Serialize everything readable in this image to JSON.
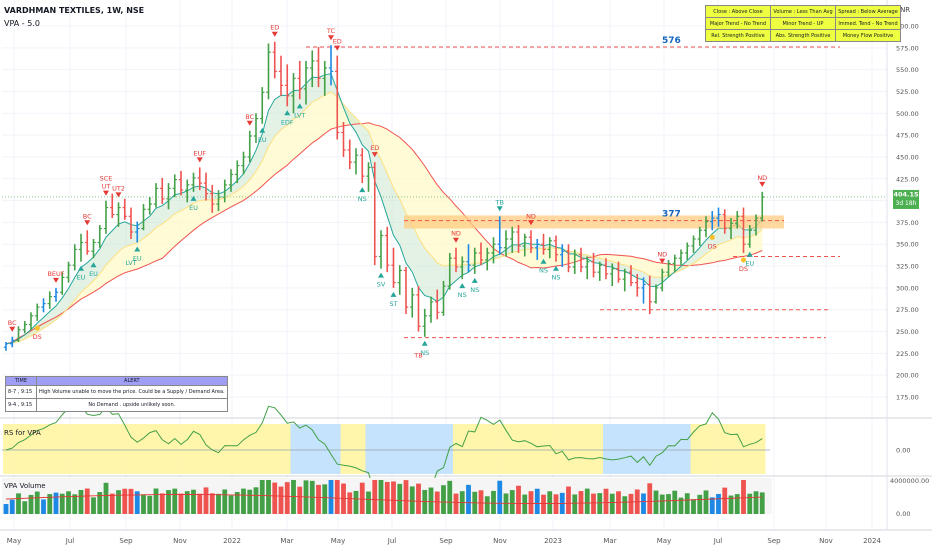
{
  "header": {
    "symbol": "VARDHMAN TEXTILES, 1W, NSE",
    "indicator": "VPA - 5.0"
  },
  "currency": "INR",
  "info_table": [
    [
      "Close : Above Close",
      "Volume : Less Than Avg",
      "Spread : Below Average"
    ],
    [
      "Major Trend - No Trend",
      "Minor Trend - UP",
      "Immed. Tend - No Trend"
    ],
    [
      "Rel. Strength Positive",
      "Abs. Strength Positive",
      "Money Flow Positive"
    ]
  ],
  "alert_table": {
    "headers": [
      "TIME",
      "ALERT"
    ],
    "rows": [
      [
        "8-7 , 9:15",
        "High Volume unable to move the price. Could be a Supply / Demand Area."
      ],
      [
        "9-4 , 9:15",
        "No Demand . upside unlikely soon."
      ]
    ]
  },
  "panes": {
    "rs_title": "RS for VPA",
    "vol_title": "VPA Volume"
  },
  "colors": {
    "up": "#43a047",
    "down": "#ef5350",
    "neutral": "#1e88e5",
    "signal_red": "#e53935",
    "signal_green": "#26a69a",
    "signal_yellow": "#fbc02d",
    "zone": "#ffcc80",
    "rs_bg_yellow": "#fff59d",
    "rs_bg_blue": "#bbdefb",
    "price_tag": "#4caf50"
  },
  "chart_data": {
    "type": "bar",
    "price_axis": {
      "min": 175,
      "max": 600,
      "ticks": [
        175,
        200,
        225,
        250,
        275,
        300,
        325,
        350,
        375,
        400,
        425,
        450,
        475,
        500,
        525,
        550,
        575,
        600
      ]
    },
    "time_labels": [
      "May",
      "Jul",
      "Sep",
      "Nov",
      "2022",
      "Mar",
      "May",
      "Jul",
      "Sep",
      "Nov",
      "2023",
      "Mar",
      "May",
      "Jul",
      "Sep",
      "Nov",
      "2024"
    ],
    "last_price": {
      "value": "404.15",
      "countdown": "3d 18h"
    },
    "levels": [
      {
        "value": 576,
        "label": "576"
      },
      {
        "value": 377,
        "label": "377"
      },
      {
        "value": 336,
        "label": ""
      },
      {
        "value": 275,
        "label": ""
      },
      {
        "value": 243,
        "label": ""
      }
    ],
    "zone": {
      "from": 368,
      "to": 383
    },
    "ohlc_weekly_approx": [
      [
        232,
        238,
        228,
        236
      ],
      [
        236,
        244,
        232,
        240
      ],
      [
        240,
        256,
        238,
        252
      ],
      [
        252,
        262,
        248,
        258
      ],
      [
        258,
        272,
        252,
        268
      ],
      [
        268,
        282,
        262,
        278
      ],
      [
        278,
        288,
        272,
        282
      ],
      [
        282,
        296,
        276,
        290
      ],
      [
        290,
        300,
        284,
        295
      ],
      [
        295,
        318,
        292,
        312
      ],
      [
        312,
        330,
        306,
        326
      ],
      [
        326,
        350,
        320,
        344
      ],
      [
        344,
        362,
        330,
        352
      ],
      [
        352,
        366,
        338,
        342
      ],
      [
        342,
        356,
        334,
        352
      ],
      [
        352,
        372,
        346,
        368
      ],
      [
        368,
        400,
        362,
        392
      ],
      [
        392,
        408,
        380,
        384
      ],
      [
        384,
        398,
        370,
        392
      ],
      [
        392,
        402,
        378,
        382
      ],
      [
        382,
        392,
        356,
        364
      ],
      [
        364,
        376,
        352,
        368
      ],
      [
        368,
        396,
        366,
        390
      ],
      [
        390,
        404,
        384,
        396
      ],
      [
        396,
        420,
        392,
        414
      ],
      [
        414,
        426,
        396,
        402
      ],
      [
        402,
        420,
        390,
        414
      ],
      [
        414,
        430,
        404,
        424
      ],
      [
        424,
        434,
        406,
        412
      ],
      [
        412,
        424,
        398,
        418
      ],
      [
        418,
        432,
        410,
        426
      ],
      [
        426,
        438,
        412,
        420
      ],
      [
        420,
        432,
        400,
        408
      ],
      [
        408,
        418,
        386,
        396
      ],
      [
        396,
        412,
        388,
        404
      ],
      [
        404,
        424,
        398,
        418
      ],
      [
        418,
        436,
        410,
        430
      ],
      [
        430,
        446,
        420,
        440
      ],
      [
        440,
        456,
        430,
        450
      ],
      [
        450,
        480,
        444,
        474
      ],
      [
        474,
        500,
        466,
        494
      ],
      [
        494,
        530,
        488,
        524
      ],
      [
        524,
        580,
        516,
        570
      ],
      [
        570,
        582,
        540,
        548
      ],
      [
        548,
        566,
        520,
        532
      ],
      [
        532,
        556,
        508,
        520
      ],
      [
        520,
        546,
        500,
        540
      ],
      [
        540,
        560,
        516,
        528
      ],
      [
        528,
        560,
        510,
        552
      ],
      [
        552,
        572,
        530,
        560
      ],
      [
        560,
        576,
        530,
        540
      ],
      [
        540,
        560,
        520,
        552
      ],
      [
        552,
        578,
        532,
        548
      ],
      [
        548,
        566,
        470,
        478
      ],
      [
        478,
        490,
        450,
        458
      ],
      [
        458,
        470,
        436,
        444
      ],
      [
        444,
        460,
        430,
        452
      ],
      [
        452,
        460,
        420,
        428
      ],
      [
        428,
        444,
        410,
        438
      ],
      [
        438,
        444,
        326,
        336
      ],
      [
        336,
        366,
        322,
        360
      ],
      [
        360,
        370,
        318,
        326
      ],
      [
        326,
        346,
        300,
        306
      ],
      [
        306,
        326,
        292,
        320
      ],
      [
        320,
        324,
        270,
        278
      ],
      [
        278,
        300,
        266,
        292
      ],
      [
        292,
        302,
        250,
        256
      ],
      [
        256,
        276,
        244,
        268
      ],
      [
        268,
        290,
        260,
        284
      ],
      [
        284,
        298,
        264,
        272
      ],
      [
        272,
        308,
        268,
        302
      ],
      [
        302,
        340,
        298,
        334
      ],
      [
        334,
        346,
        318,
        324
      ],
      [
        324,
        336,
        310,
        330
      ],
      [
        330,
        350,
        318,
        326
      ],
      [
        326,
        346,
        316,
        340
      ],
      [
        340,
        352,
        326,
        332
      ],
      [
        332,
        346,
        320,
        340
      ],
      [
        340,
        358,
        328,
        350
      ],
      [
        350,
        382,
        338,
        346
      ],
      [
        346,
        366,
        336,
        356
      ],
      [
        356,
        370,
        340,
        364
      ],
      [
        364,
        372,
        340,
        348
      ],
      [
        348,
        362,
        336,
        358
      ],
      [
        358,
        366,
        340,
        346
      ],
      [
        346,
        356,
        332,
        350
      ],
      [
        350,
        362,
        338,
        344
      ],
      [
        344,
        358,
        334,
        354
      ],
      [
        354,
        360,
        330,
        338
      ],
      [
        338,
        350,
        324,
        342
      ],
      [
        342,
        350,
        318,
        324
      ],
      [
        324,
        344,
        316,
        338
      ],
      [
        338,
        346,
        318,
        324
      ],
      [
        324,
        336,
        310,
        330
      ],
      [
        330,
        340,
        312,
        318
      ],
      [
        318,
        330,
        308,
        326
      ],
      [
        326,
        334,
        310,
        316
      ],
      [
        316,
        328,
        302,
        322
      ],
      [
        322,
        330,
        306,
        310
      ],
      [
        310,
        322,
        296,
        318
      ],
      [
        318,
        326,
        302,
        306
      ],
      [
        306,
        316,
        290,
        300
      ],
      [
        300,
        312,
        282,
        304
      ],
      [
        304,
        314,
        270,
        284
      ],
      [
        284,
        304,
        282,
        300
      ],
      [
        300,
        322,
        296,
        318
      ],
      [
        318,
        332,
        312,
        328
      ],
      [
        328,
        338,
        318,
        334
      ],
      [
        334,
        344,
        326,
        340
      ],
      [
        340,
        352,
        332,
        348
      ],
      [
        348,
        360,
        340,
        356
      ],
      [
        356,
        370,
        348,
        366
      ],
      [
        366,
        382,
        358,
        376
      ],
      [
        376,
        388,
        366,
        380
      ],
      [
        380,
        392,
        370,
        384
      ],
      [
        384,
        390,
        362,
        368
      ],
      [
        368,
        380,
        356,
        374
      ],
      [
        374,
        388,
        368,
        382
      ],
      [
        382,
        392,
        340,
        350
      ],
      [
        350,
        372,
        346,
        366
      ],
      [
        366,
        384,
        360,
        380
      ],
      [
        380,
        410,
        376,
        404
      ]
    ],
    "signals": [
      {
        "i": 1,
        "label": "BC",
        "pos": "above",
        "color": "red"
      },
      {
        "i": 5,
        "label": "DS",
        "pos": "below",
        "color": "yellow"
      },
      {
        "i": 8,
        "label": "BEUF",
        "pos": "above",
        "color": "red"
      },
      {
        "i": 12,
        "label": "EU",
        "pos": "below",
        "color": "green"
      },
      {
        "i": 14,
        "label": "EU",
        "pos": "below",
        "color": "green"
      },
      {
        "i": 13,
        "label": "BC",
        "pos": "above",
        "color": "red"
      },
      {
        "i": 16,
        "label": "UT",
        "pos": "above",
        "color": "red"
      },
      {
        "i": 16,
        "label": "SCE",
        "pos": "above2",
        "color": "red"
      },
      {
        "i": 18,
        "label": "UT2",
        "pos": "above",
        "color": "red"
      },
      {
        "i": 21,
        "label": "EU",
        "pos": "below",
        "color": "green"
      },
      {
        "i": 20,
        "label": "LVT",
        "pos": "below2",
        "color": "green"
      },
      {
        "i": 31,
        "label": "EUF",
        "pos": "above",
        "color": "red"
      },
      {
        "i": 30,
        "label": "EU",
        "pos": "below",
        "color": "green"
      },
      {
        "i": 39,
        "label": "BC",
        "pos": "above",
        "color": "red"
      },
      {
        "i": 41,
        "label": "EU",
        "pos": "below",
        "color": "green"
      },
      {
        "i": 43,
        "label": "ED",
        "pos": "above",
        "color": "red"
      },
      {
        "i": 45,
        "label": "EDF",
        "pos": "below",
        "color": "green"
      },
      {
        "i": 47,
        "label": "LVT",
        "pos": "below",
        "color": "green"
      },
      {
        "i": 52,
        "label": "TC",
        "pos": "above",
        "color": "red"
      },
      {
        "i": 53,
        "label": "ED",
        "pos": "above",
        "color": "red"
      },
      {
        "i": 57,
        "label": "NS",
        "pos": "below",
        "color": "green"
      },
      {
        "i": 59,
        "label": "ED",
        "pos": "above",
        "color": "red"
      },
      {
        "i": 60,
        "label": "SV",
        "pos": "below",
        "color": "green"
      },
      {
        "i": 62,
        "label": "ST",
        "pos": "below",
        "color": "green"
      },
      {
        "i": 67,
        "label": "NS",
        "pos": "below",
        "color": "green"
      },
      {
        "i": 66,
        "label": "TB",
        "pos": "below2",
        "color": "red"
      },
      {
        "i": 72,
        "label": "ND",
        "pos": "above",
        "color": "red"
      },
      {
        "i": 73,
        "label": "NS",
        "pos": "below",
        "color": "green"
      },
      {
        "i": 75,
        "label": "NS",
        "pos": "below",
        "color": "green"
      },
      {
        "i": 79,
        "label": "TB",
        "pos": "above",
        "color": "green"
      },
      {
        "i": 84,
        "label": "ND",
        "pos": "above",
        "color": "red"
      },
      {
        "i": 86,
        "label": "NS",
        "pos": "below",
        "color": "green"
      },
      {
        "i": 88,
        "label": "NS",
        "pos": "below",
        "color": "green"
      },
      {
        "i": 105,
        "label": "ND",
        "pos": "above",
        "color": "red"
      },
      {
        "i": 113,
        "label": "DS",
        "pos": "below",
        "color": "yellow"
      },
      {
        "i": 118,
        "label": "DS",
        "pos": "below",
        "color": "yellow"
      },
      {
        "i": 119,
        "label": "EU",
        "pos": "below",
        "color": "green"
      },
      {
        "i": 121,
        "label": "ND",
        "pos": "above",
        "color": "red"
      }
    ],
    "rs_axis": {
      "ticks": [
        0.0
      ]
    },
    "rs_background": [
      {
        "from": 0,
        "to": 46,
        "color": "yellow"
      },
      {
        "from": 46,
        "to": 54,
        "color": "blue"
      },
      {
        "from": 54,
        "to": 58,
        "color": "yellow"
      },
      {
        "from": 58,
        "to": 72,
        "color": "blue"
      },
      {
        "from": 72,
        "to": 96,
        "color": "yellow"
      },
      {
        "from": 96,
        "to": 110,
        "color": "blue"
      },
      {
        "from": 110,
        "to": 122,
        "color": "yellow"
      }
    ],
    "volume_axis": {
      "ticks": [
        "4000000.00",
        "0.00"
      ]
    }
  }
}
